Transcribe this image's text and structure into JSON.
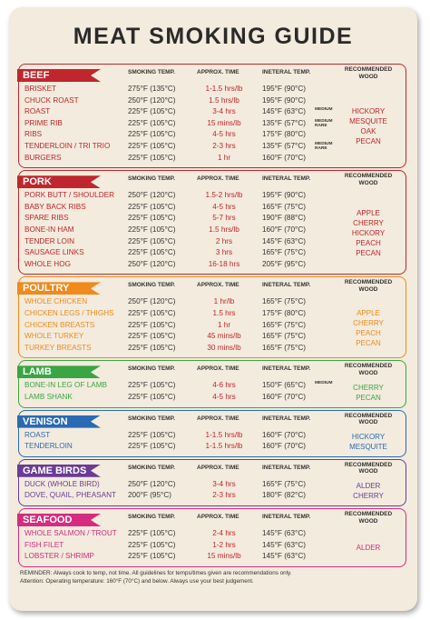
{
  "title": "MEAT SMOKING GUIDE",
  "sections": [
    {
      "name": "BEEF",
      "color": "#c0262d",
      "headers": [
        "SMOKING TEMP.",
        "APPROX. TIME",
        "INETERAL TEMP.",
        "RECOMMENDED WOOD"
      ],
      "rows": [
        {
          "item": "BRISKET",
          "smoking_temp": "275°F (135°C)",
          "approx_time": "1-1.5 hrs/lb",
          "internal_temp": "195°F (90°C)"
        },
        {
          "item": "CHUCK ROAST",
          "smoking_temp": "250°F (120°C)",
          "approx_time": "1.5 hrs/lb",
          "internal_temp": "195°F (90°C)"
        },
        {
          "item": "ROAST",
          "smoking_temp": "225°F (105°C)",
          "approx_time": "3-4 hrs",
          "internal_temp": "145°F (63°C)",
          "doneness": "MEDIUM"
        },
        {
          "item": "PRIME RIB",
          "smoking_temp": "225°F (105°C)",
          "approx_time": "15 mins/lb",
          "internal_temp": "135°F (57°C)",
          "doneness": "MEDIUM RARE"
        },
        {
          "item": "RIBS",
          "smoking_temp": "225°F (105°C)",
          "approx_time": "4-5 hrs",
          "internal_temp": "175°F (80°C)"
        },
        {
          "item": "TENDERLOIN / TRI TRIO",
          "smoking_temp": "225°F (105°C)",
          "approx_time": "2-3 hrs",
          "internal_temp": "135°F (57°C)",
          "doneness": "MEDIUM RARE"
        },
        {
          "item": "BURGERS",
          "smoking_temp": "225°F (105°C)",
          "approx_time": "1 hr",
          "internal_temp": "160°F (70°C)"
        }
      ],
      "woods": [
        "HICKORY",
        "MESQUITE",
        "OAK",
        "PECAN"
      ]
    },
    {
      "name": "PORK",
      "color": "#c0262d",
      "headers": [
        "SMOKING TEMP.",
        "APPROX. TIME",
        "INETERAL TEMP.",
        "RECOMMENDED WOOD"
      ],
      "rows": [
        {
          "item": "PORK BUTT / SHOULDER",
          "smoking_temp": "250°F (120°C)",
          "approx_time": "1.5-2 hrs/lb",
          "internal_temp": "195°F (90°C)"
        },
        {
          "item": "BABY BACK RIBS",
          "smoking_temp": "225°F (105°C)",
          "approx_time": "4-5 hrs",
          "internal_temp": "165°F (75°C)"
        },
        {
          "item": "SPARE RIBS",
          "smoking_temp": "225°F (105°C)",
          "approx_time": "5-7 hrs",
          "internal_temp": "190°F (88°C)"
        },
        {
          "item": "BONE-IN HAM",
          "smoking_temp": "225°F (105°C)",
          "approx_time": "1.5 hrs/lb",
          "internal_temp": "160°F (70°C)"
        },
        {
          "item": "TENDER LOIN",
          "smoking_temp": "225°F (105°C)",
          "approx_time": "2 hrs",
          "internal_temp": "145°F (63°C)"
        },
        {
          "item": "SAUSAGE LINKS",
          "smoking_temp": "225°F (105°C)",
          "approx_time": "3 hrs",
          "internal_temp": "165°F (75°C)"
        },
        {
          "item": "WHOLE HOG",
          "smoking_temp": "250°F (120°C)",
          "approx_time": "16-18 hrs",
          "internal_temp": "205°F (95°C)"
        }
      ],
      "woods": [
        "APPLE",
        "CHERRY",
        "HICKORY",
        "PEACH",
        "PECAN"
      ]
    },
    {
      "name": "POULTRY",
      "color": "#f08a1c",
      "headers": [
        "SMOKING TEMP.",
        "APPROX. TIME",
        "INETERAL TEMP.",
        "RECOMMENDED WOOD"
      ],
      "rows": [
        {
          "item": "WHOLE CHICKEN",
          "smoking_temp": "250°F (120°C)",
          "approx_time": "1 hr/lb",
          "internal_temp": "165°F (75°C)"
        },
        {
          "item": "CHICKEN LEGS / THIGHS",
          "smoking_temp": "225°F (105°C)",
          "approx_time": "1.5 hrs",
          "internal_temp": "175°F (80°C)"
        },
        {
          "item": "CHICKEN BREASTS",
          "smoking_temp": "225°F (105°C)",
          "approx_time": "1 hr",
          "internal_temp": "165°F (75°C)"
        },
        {
          "item": "WHOLE TURKEY",
          "smoking_temp": "225°F (105°C)",
          "approx_time": "45 mins/lb",
          "internal_temp": "165°F (75°C)"
        },
        {
          "item": "TURKEY BREASTS",
          "smoking_temp": "225°F (105°C)",
          "approx_time": "30 mins/lb",
          "internal_temp": "165°F (75°C)"
        }
      ],
      "woods": [
        "APPLE",
        "CHERRY",
        "PEACH",
        "PECAN"
      ]
    },
    {
      "name": "LAMB",
      "color": "#3aa545",
      "headers": [
        "SMOKING TEMP.",
        "APPROX. TIME",
        "INETERAL TEMP.",
        "RECOMMENDED WOOD"
      ],
      "rows": [
        {
          "item": "BONE-IN LEG OF LAMB",
          "smoking_temp": "225°F (105°C)",
          "approx_time": "4-6 hrs",
          "internal_temp": "150°F (65°C)",
          "doneness": "MEDIUM"
        },
        {
          "item": "LAMB SHANK",
          "smoking_temp": "225°F (105°C)",
          "approx_time": "4-5 hrs",
          "internal_temp": "160°F (70°C)"
        }
      ],
      "woods": [
        "CHERRY",
        "PECAN"
      ]
    },
    {
      "name": "VENISON",
      "color": "#2a6ab3",
      "headers": [
        "SMOKING TEMP.",
        "APPROX. TIME",
        "INETERAL TEMP.",
        "RECOMMENDED WOOD"
      ],
      "rows": [
        {
          "item": "ROAST",
          "smoking_temp": "225°F (105°C)",
          "approx_time": "1-1.5 hrs/lb",
          "internal_temp": "160°F (70°C)"
        },
        {
          "item": "TENDERLOIN",
          "smoking_temp": "225°F (105°C)",
          "approx_time": "1-1.5 hrs/lb",
          "internal_temp": "160°F (70°C)"
        }
      ],
      "woods": [
        "HICKORY",
        "MESQUITE"
      ]
    },
    {
      "name": "GAME BIRDS",
      "color": "#6b3b97",
      "headers": [
        "SMOKING TEMP.",
        "APPROX. TIME",
        "INETERAL TEMP.",
        "RECOMMENDED WOOD"
      ],
      "rows": [
        {
          "item": "DUCK (WHOLE BIRD)",
          "smoking_temp": "250°F (120°C)",
          "approx_time": "3-4 hrs",
          "internal_temp": "165°F (75°C)"
        },
        {
          "item": "DOVE, QUAIL, PHEASANT",
          "smoking_temp": "200°F (95°C)",
          "approx_time": "2-3 hrs",
          "internal_temp": "180°F (82°C)"
        }
      ],
      "woods": [
        "ALDER",
        "CHERRY"
      ]
    },
    {
      "name": "SEAFOOD",
      "color": "#d62c7f",
      "headers": [
        "SMOKING TEMP.",
        "APPROX. TIME",
        "INETERAL TEMP.",
        "RECOMMENDED WOOD"
      ],
      "rows": [
        {
          "item": "WHOLE SALMON / TROUT",
          "smoking_temp": "225°F (105°C)",
          "approx_time": "2-4 hrs",
          "internal_temp": "145°F (63°C)"
        },
        {
          "item": "FISH FILET",
          "smoking_temp": "225°F (105°C)",
          "approx_time": "1-2 hrs",
          "internal_temp": "145°F (63°C)"
        },
        {
          "item": "LOBSTER / SHRIMP",
          "smoking_temp": "225°F (105°C)",
          "approx_time": "15 mins/lb",
          "internal_temp": "145°F (63°C)"
        }
      ],
      "woods": [
        "ALDER"
      ]
    }
  ],
  "footer": [
    "REMINDER: Always cook to temp, not time. All guidelines for temps/times given are recommendations only.",
    "Attention: Operating temperature: 160°F (70°C) and below. Always use your best judgement."
  ]
}
